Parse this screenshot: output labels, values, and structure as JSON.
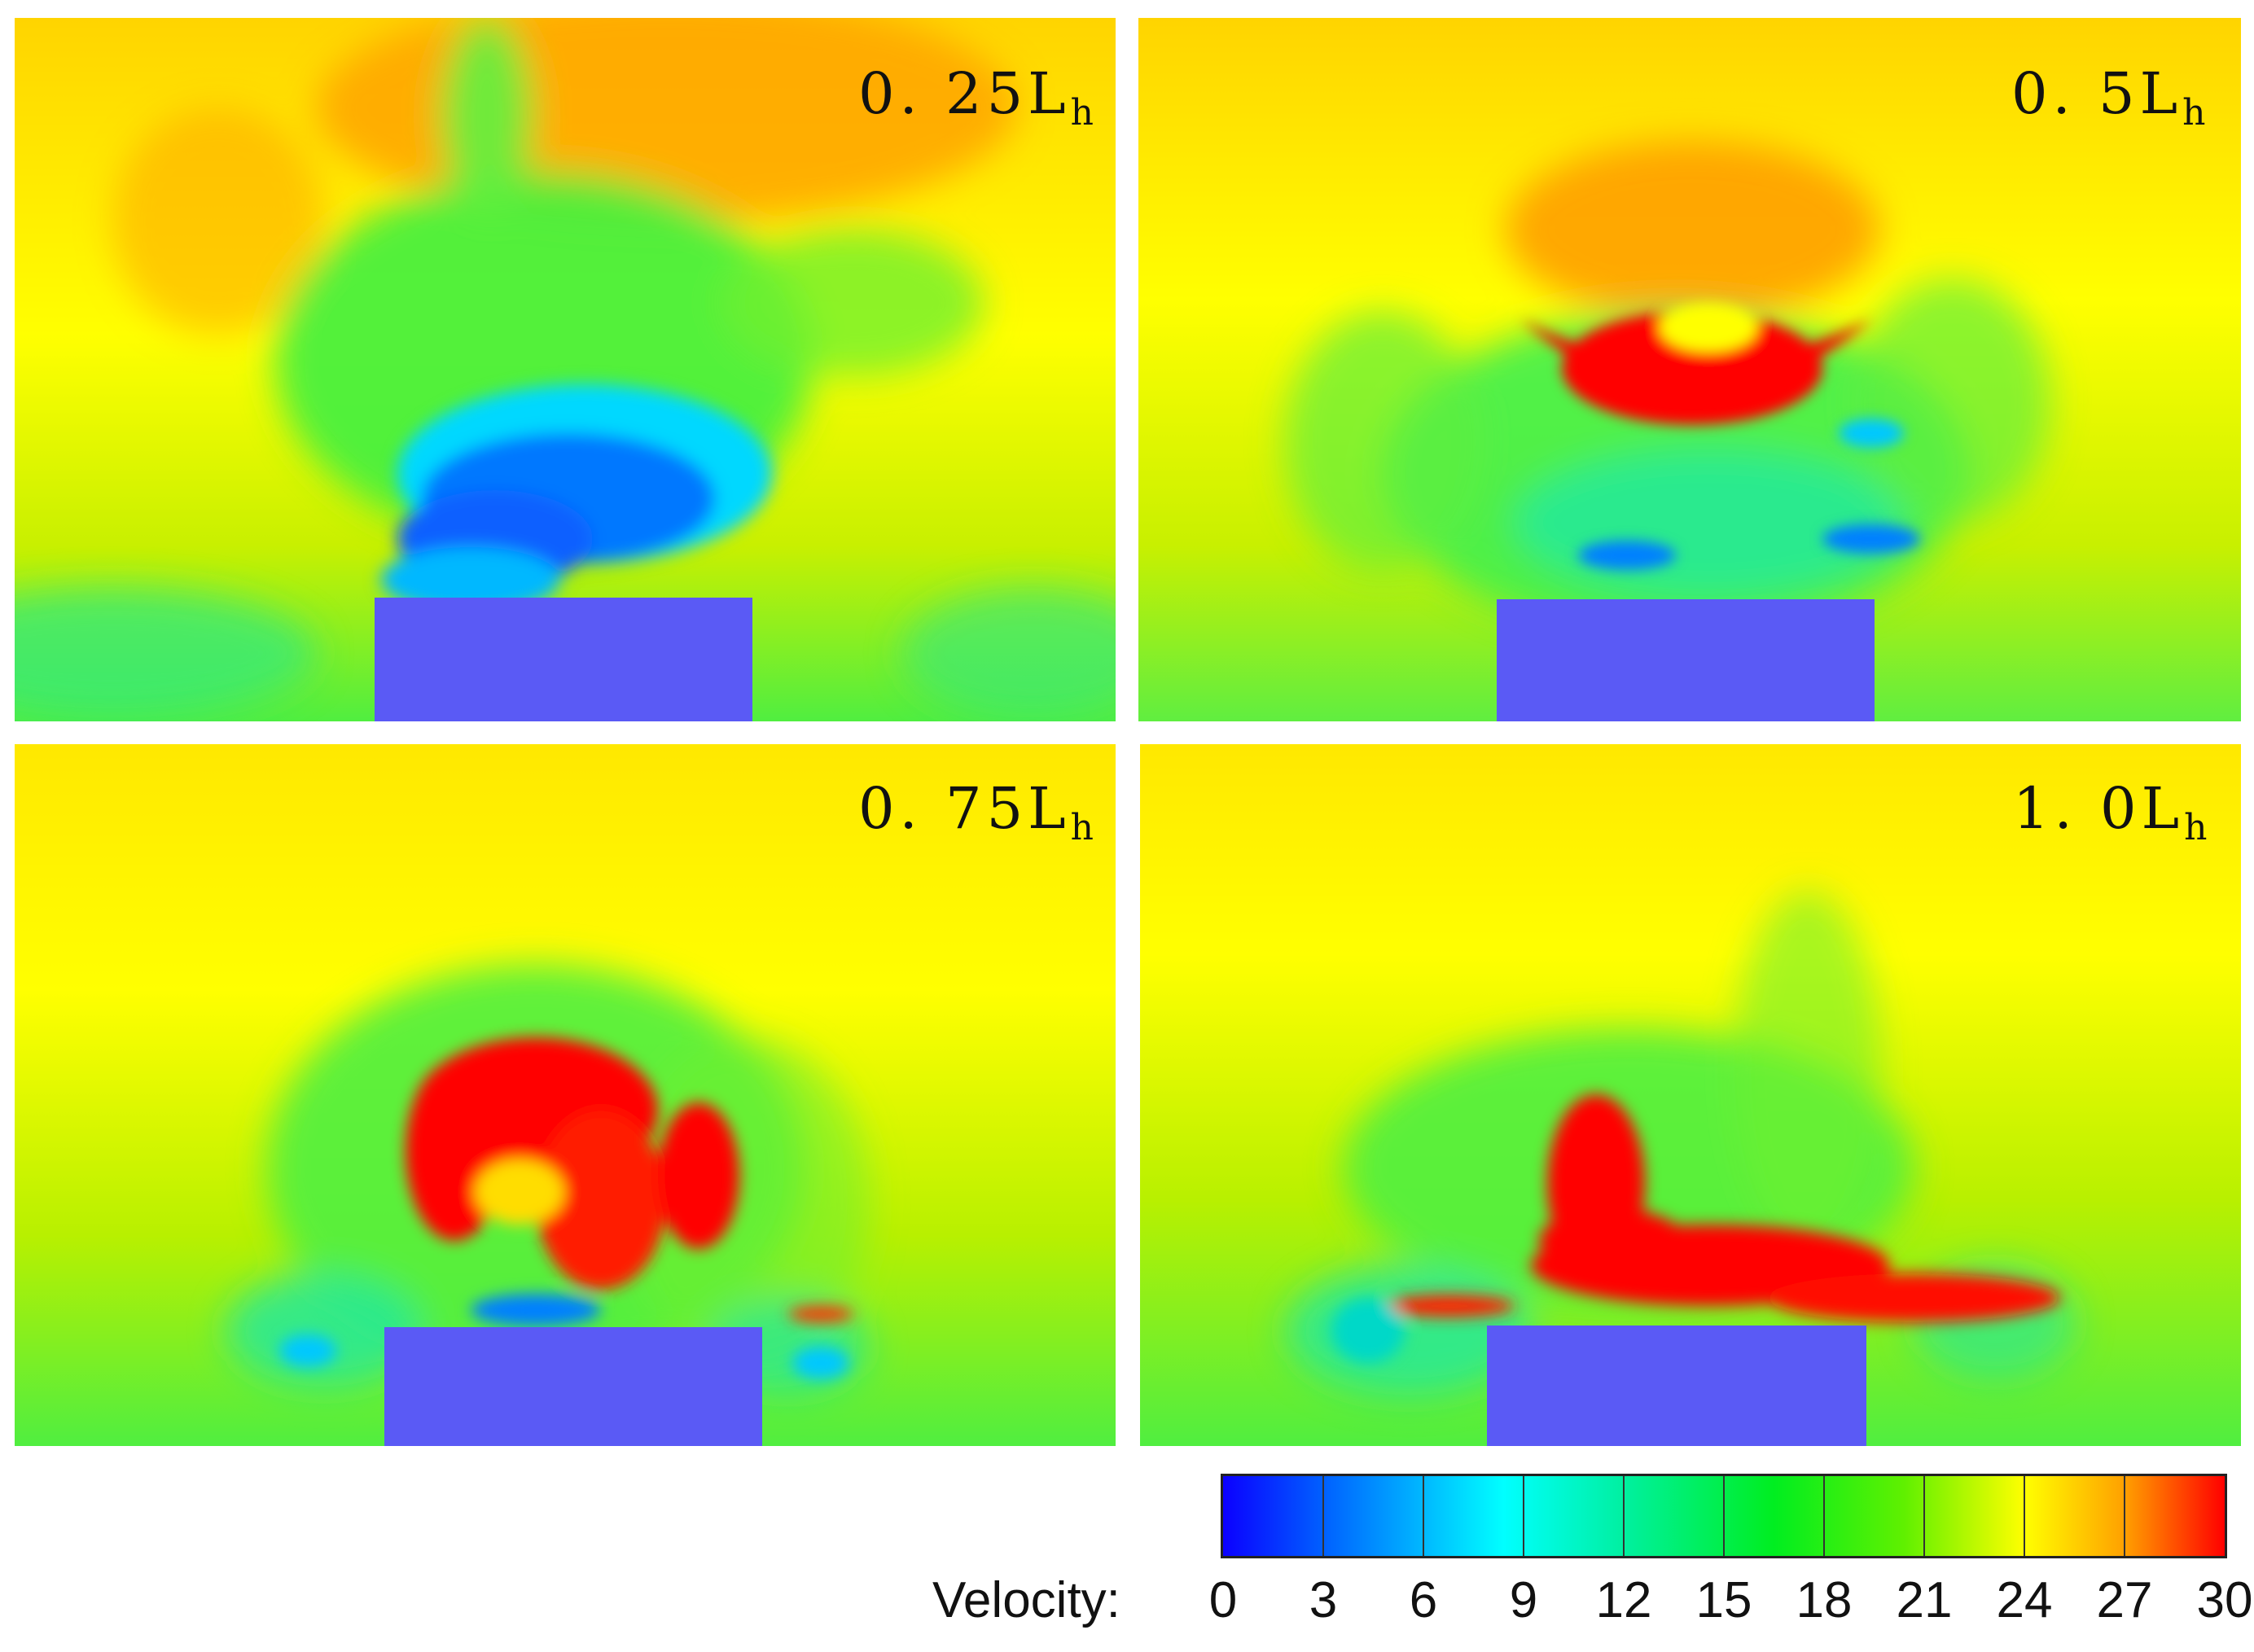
{
  "panels": [
    {
      "label_main": "0. 25L",
      "label_sub": "h"
    },
    {
      "label_main": "0. 5L",
      "label_sub": "h"
    },
    {
      "label_main": "0. 75L",
      "label_sub": "h"
    },
    {
      "label_main": "1. 0L",
      "label_sub": "h"
    }
  ],
  "colorbar": {
    "title": "Velocity:",
    "ticks": [
      "0",
      "3",
      "6",
      "9",
      "12",
      "15",
      "18",
      "21",
      "24",
      "27",
      "30"
    ],
    "colors": {
      "blue": "#0b00ff",
      "cyan": "#00ffff",
      "green": "#00ff00",
      "yellow": "#ffff00",
      "red": "#ff0000"
    }
  },
  "building_color": "#5a5af5"
}
